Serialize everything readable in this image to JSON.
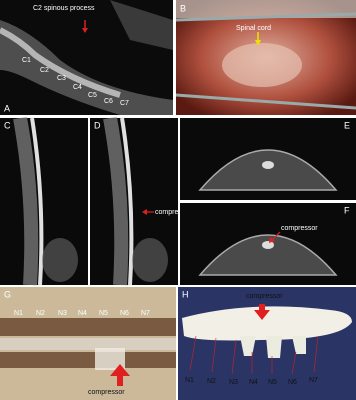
{
  "panel_a": {
    "label": "A",
    "title": "C2 spinous process",
    "vertebrae": [
      "C1",
      "C2",
      "C3",
      "C4",
      "C5",
      "C6",
      "C7"
    ]
  },
  "panel_b": {
    "label": "B",
    "annotation": "Spinal cord"
  },
  "panel_c": {
    "label": "C"
  },
  "panel_d": {
    "label": "D",
    "annotation": "compressor"
  },
  "panel_e": {
    "label": "E"
  },
  "panel_f": {
    "label": "F",
    "annotation": "compressor"
  },
  "panel_g": {
    "label": "G",
    "segments": [
      "N1",
      "N2",
      "N3",
      "N4",
      "N5",
      "N6",
      "N7"
    ],
    "annotation": "compressor"
  },
  "panel_h": {
    "label": "H",
    "segments": [
      "N1",
      "N2",
      "N3",
      "N4",
      "N5",
      "N6",
      "N7"
    ],
    "annotation": "compressor"
  }
}
